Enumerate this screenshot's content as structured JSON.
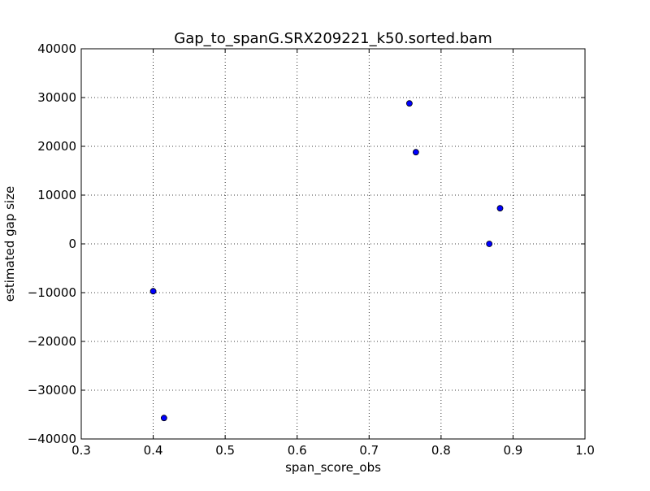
{
  "chart_data": {
    "type": "scatter",
    "title": "Gap_to_spanG.SRX209221_k50.sorted.bam",
    "xlabel": "span_score_obs",
    "ylabel": "estimated gap size",
    "xlim": [
      0.3,
      1.0
    ],
    "ylim": [
      -40000,
      40000
    ],
    "xticks": [
      0.3,
      0.4,
      0.5,
      0.6,
      0.7,
      0.8,
      0.9,
      1.0
    ],
    "xtick_labels": [
      "0.3",
      "0.4",
      "0.5",
      "0.6",
      "0.7",
      "0.8",
      "0.9",
      "1.0"
    ],
    "yticks": [
      40000,
      30000,
      20000,
      10000,
      0,
      -10000,
      -20000,
      -30000,
      -40000
    ],
    "ytick_labels": [
      "40000",
      "30000",
      "20000",
      "10000",
      "0",
      "−10000",
      "−20000",
      "−30000",
      "−40000"
    ],
    "grid": true,
    "marker_color": "#0000ff",
    "marker_edge_color": "#000000",
    "points": [
      {
        "x": 0.4,
        "y": -9700
      },
      {
        "x": 0.415,
        "y": -35700
      },
      {
        "x": 0.756,
        "y": 28800
      },
      {
        "x": 0.765,
        "y": 18800
      },
      {
        "x": 0.867,
        "y": 0
      },
      {
        "x": 0.882,
        "y": 7300
      }
    ]
  }
}
